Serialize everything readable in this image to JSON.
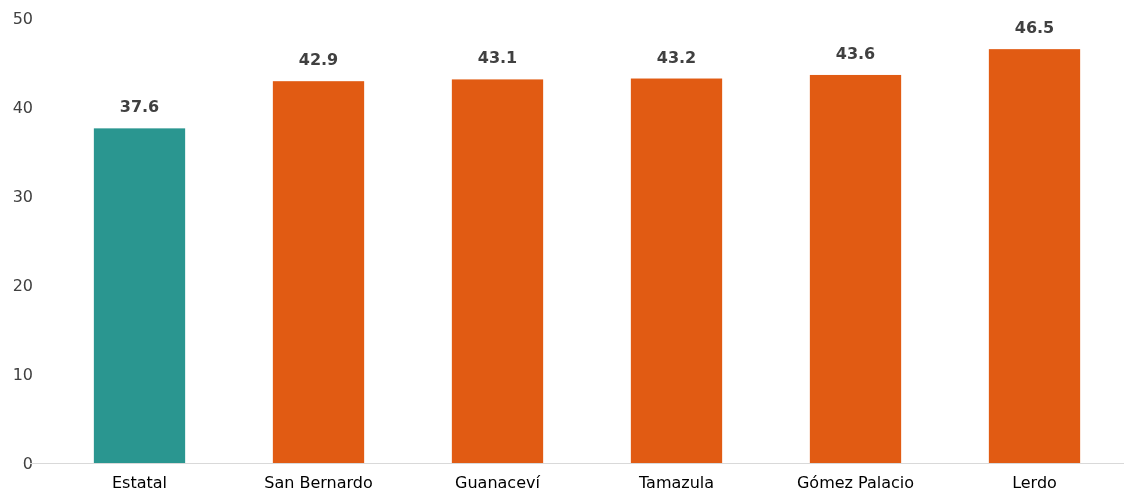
{
  "chart_data": {
    "type": "bar",
    "categories": [
      "Estatal",
      "San Bernardo",
      "Guanaceví",
      "Tamazula",
      "Gómez Palacio",
      "Lerdo"
    ],
    "values": [
      37.6,
      42.9,
      43.1,
      43.2,
      43.6,
      46.5
    ],
    "colors": [
      "#2a9690",
      "#e15b13",
      "#e15b13",
      "#e15b13",
      "#e15b13",
      "#e15b13"
    ],
    "ylim": [
      0,
      50
    ],
    "yticks": [
      0,
      10,
      20,
      30,
      40,
      50
    ],
    "data_labels": true,
    "grid": false
  }
}
